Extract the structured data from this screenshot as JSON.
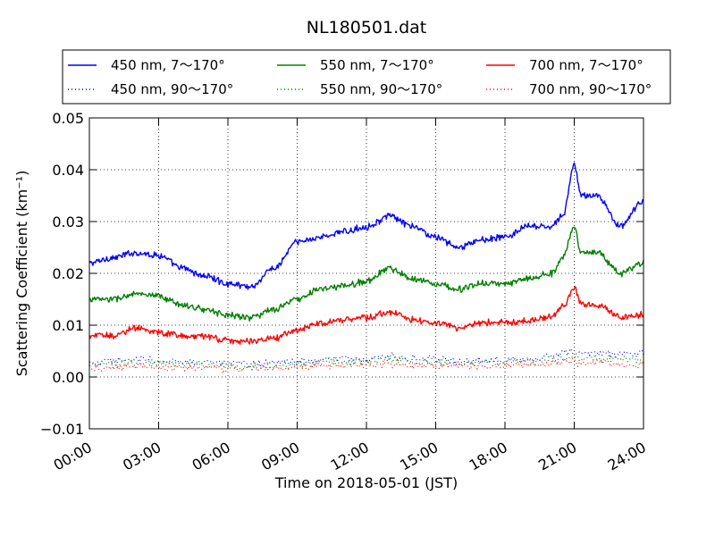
{
  "chart_data": {
    "type": "line",
    "title": "NL180501.dat",
    "xlabel": "Time on 2018-05-01 (JST)",
    "ylabel": "Scattering Coefficient (km⁻¹)",
    "xlim": [
      0,
      24
    ],
    "ylim": [
      -0.01,
      0.05
    ],
    "x_ticks": [
      "00:00",
      "03:00",
      "06:00",
      "09:00",
      "12:00",
      "15:00",
      "18:00",
      "21:00",
      "24:00"
    ],
    "y_ticks": [
      "−0.01",
      "0.00",
      "0.01",
      "0.02",
      "0.03",
      "0.04",
      "0.05"
    ],
    "grid": true,
    "legend_position": "top",
    "x": [
      0,
      1,
      2,
      3,
      4,
      5,
      6,
      7,
      8,
      9,
      10,
      11,
      12,
      13,
      14,
      15,
      16,
      17,
      18,
      19,
      20,
      20.5,
      21,
      21.3,
      22,
      23,
      24
    ],
    "series": [
      {
        "name": "450 nm, 7～170°",
        "color": "#0000ff",
        "style": "solid",
        "values": [
          0.022,
          0.023,
          0.024,
          0.0235,
          0.021,
          0.0195,
          0.018,
          0.0175,
          0.021,
          0.026,
          0.027,
          0.028,
          0.029,
          0.031,
          0.029,
          0.027,
          0.025,
          0.0265,
          0.027,
          0.029,
          0.029,
          0.031,
          0.041,
          0.035,
          0.035,
          0.029,
          0.034
        ]
      },
      {
        "name": "450 nm, 90～170°",
        "color": "#0000ff",
        "style": "dotted",
        "values": [
          0.0025,
          0.003,
          0.0035,
          0.003,
          0.003,
          0.003,
          0.0025,
          0.0025,
          0.003,
          0.003,
          0.0033,
          0.0035,
          0.0035,
          0.004,
          0.0035,
          0.0033,
          0.003,
          0.0033,
          0.0035,
          0.0035,
          0.004,
          0.0045,
          0.005,
          0.0045,
          0.0045,
          0.0045,
          0.0045
        ]
      },
      {
        "name": "550 nm, 7～170°",
        "color": "#008000",
        "style": "solid",
        "values": [
          0.015,
          0.015,
          0.016,
          0.0155,
          0.014,
          0.013,
          0.012,
          0.0115,
          0.013,
          0.015,
          0.017,
          0.0175,
          0.0185,
          0.021,
          0.019,
          0.018,
          0.017,
          0.018,
          0.018,
          0.019,
          0.02,
          0.023,
          0.029,
          0.024,
          0.024,
          0.02,
          0.022
        ]
      },
      {
        "name": "550 nm, 90～170°",
        "color": "#008000",
        "style": "dotted",
        "values": [
          0.002,
          0.0025,
          0.0028,
          0.0025,
          0.0025,
          0.0025,
          0.002,
          0.002,
          0.0022,
          0.0025,
          0.0028,
          0.003,
          0.003,
          0.0033,
          0.003,
          0.0028,
          0.0025,
          0.0028,
          0.003,
          0.003,
          0.0033,
          0.0035,
          0.0038,
          0.0035,
          0.0035,
          0.0033,
          0.0035
        ]
      },
      {
        "name": "700 nm, 7～170°",
        "color": "#ff0000",
        "style": "solid",
        "values": [
          0.008,
          0.008,
          0.0095,
          0.0085,
          0.008,
          0.0078,
          0.007,
          0.007,
          0.0075,
          0.009,
          0.0105,
          0.011,
          0.0115,
          0.0125,
          0.011,
          0.0105,
          0.0095,
          0.0105,
          0.0105,
          0.011,
          0.0115,
          0.0135,
          0.017,
          0.014,
          0.014,
          0.0115,
          0.012
        ]
      },
      {
        "name": "700 nm, 90～170°",
        "color": "#ff0000",
        "style": "dotted",
        "values": [
          0.0015,
          0.0017,
          0.002,
          0.0018,
          0.0018,
          0.0018,
          0.0015,
          0.0015,
          0.0017,
          0.002,
          0.002,
          0.0022,
          0.0022,
          0.0025,
          0.0023,
          0.0022,
          0.002,
          0.0022,
          0.0022,
          0.0023,
          0.0025,
          0.0027,
          0.003,
          0.0027,
          0.0027,
          0.0025,
          0.0025
        ]
      }
    ]
  }
}
